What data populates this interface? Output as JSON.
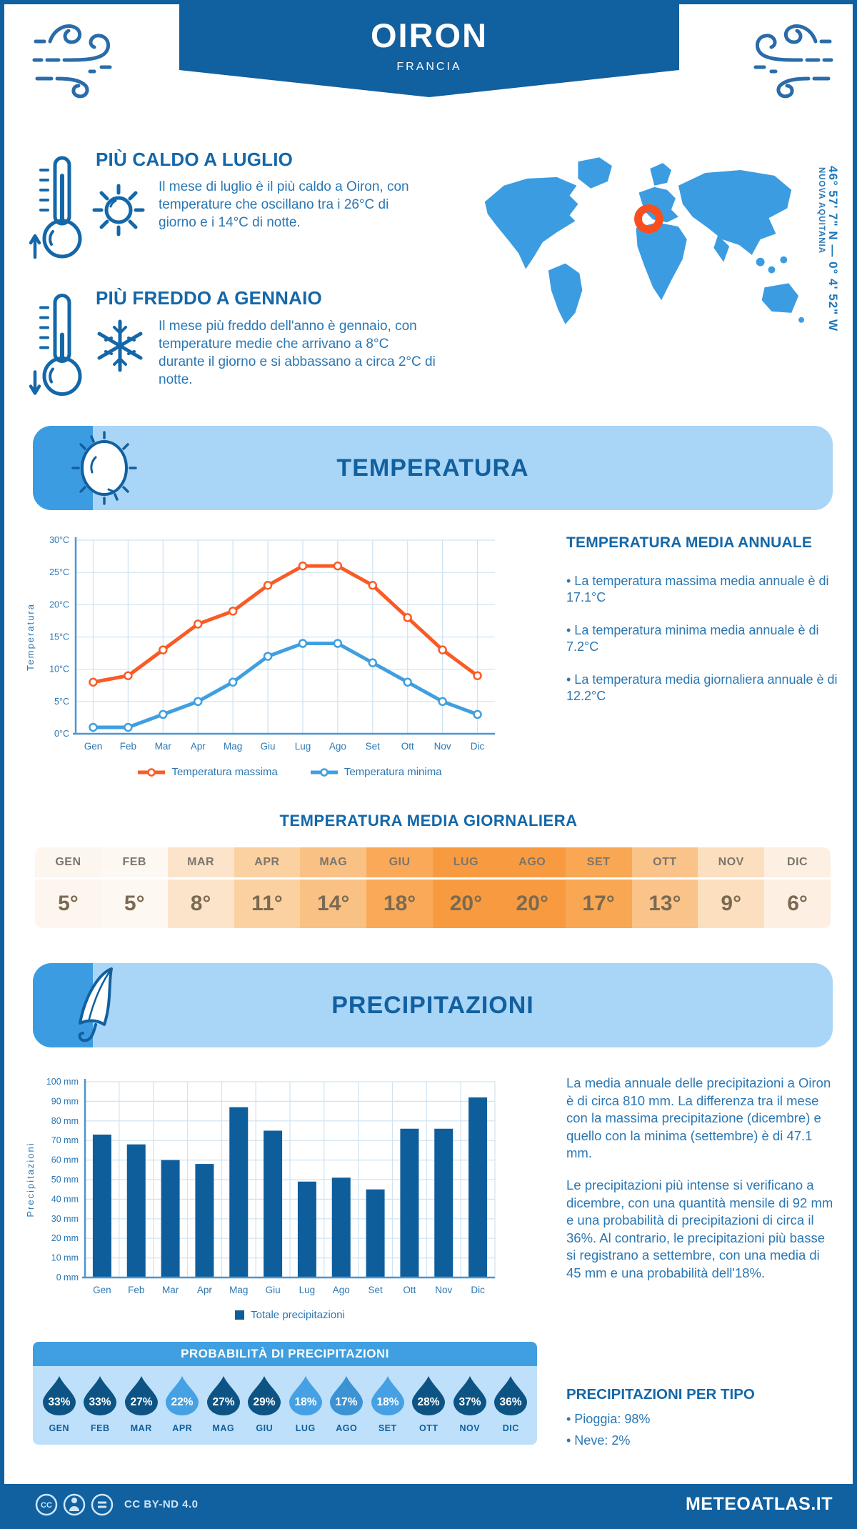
{
  "header": {
    "location": "OIRON",
    "country": "FRANCIA"
  },
  "map": {
    "coordinates": "46° 57' 7\" N — 0° 4' 52\" W",
    "region": "NUOVA AQUITANIA",
    "land_color": "#3c9ce1",
    "marker_color": "#f94f1e"
  },
  "highlights": {
    "hot": {
      "title": "PIÙ CALDO A LUGLIO",
      "text": "Il mese di luglio è il più caldo a Oiron, con temperature che oscillano tra i 26°C di giorno e i 14°C di notte."
    },
    "cold": {
      "title": "PIÙ FREDDO A GENNAIO",
      "text": "Il mese più freddo dell'anno è gennaio, con temperature medie che arrivano a 8°C durante il giorno e si abbassano a circa 2°C di notte."
    }
  },
  "temperature": {
    "banner_title": "TEMPERATURA",
    "annual_title": "TEMPERATURA MEDIA ANNUALE",
    "annual_bullets": [
      "• La temperatura massima media annuale è di 17.1°C",
      "• La temperatura minima media annuale è di 7.2°C",
      "• La temperatura media giornaliera annuale è di 12.2°C"
    ],
    "daily_title": "TEMPERATURA MEDIA GIORNALIERA",
    "daily_table": [
      {
        "month": "GEN",
        "value": "5°",
        "bg": "#fdf6ee"
      },
      {
        "month": "FEB",
        "value": "5°",
        "bg": "#fdf8f2"
      },
      {
        "month": "MAR",
        "value": "8°",
        "bg": "#fce4cb"
      },
      {
        "month": "APR",
        "value": "11°",
        "bg": "#fbd1a1"
      },
      {
        "month": "MAG",
        "value": "14°",
        "bg": "#fac184"
      },
      {
        "month": "GIU",
        "value": "18°",
        "bg": "#f9a958"
      },
      {
        "month": "LUG",
        "value": "20°",
        "bg": "#f89b40"
      },
      {
        "month": "AGO",
        "value": "20°",
        "bg": "#f89b40"
      },
      {
        "month": "SET",
        "value": "17°",
        "bg": "#f9a752"
      },
      {
        "month": "OTT",
        "value": "13°",
        "bg": "#fac389"
      },
      {
        "month": "NOV",
        "value": "9°",
        "bg": "#fcdfbf"
      },
      {
        "month": "DIC",
        "value": "6°",
        "bg": "#fdf0e2"
      }
    ]
  },
  "precipitation": {
    "banner_title": "PRECIPITAZIONI",
    "paragraph1": "La media annuale delle precipitazioni a Oiron è di circa 810 mm. La differenza tra il mese con la massima precipitazione (dicembre) e quello con la minima (settembre) è di 47.1 mm.",
    "paragraph2": "Le precipitazioni più intense si verificano a dicembre, con una quantità mensile di 92 mm e una probabilità di precipitazioni di circa il 36%. Al contrario, le precipitazioni più basse si registrano a settembre, con una media di 45 mm e una probabilità dell'18%.",
    "probability_title": "PROBABILITÀ DI PRECIPITAZIONI",
    "probability": [
      {
        "month": "GEN",
        "value": "33%",
        "color": "#0d5484"
      },
      {
        "month": "FEB",
        "value": "33%",
        "color": "#0d5484"
      },
      {
        "month": "MAR",
        "value": "27%",
        "color": "#0d5484"
      },
      {
        "month": "APR",
        "value": "22%",
        "color": "#45a1e3"
      },
      {
        "month": "MAG",
        "value": "27%",
        "color": "#0d5484"
      },
      {
        "month": "GIU",
        "value": "29%",
        "color": "#0d5484"
      },
      {
        "month": "LUG",
        "value": "18%",
        "color": "#45a1e3"
      },
      {
        "month": "AGO",
        "value": "17%",
        "color": "#3b93d4"
      },
      {
        "month": "SET",
        "value": "18%",
        "color": "#45a1e3"
      },
      {
        "month": "OTT",
        "value": "28%",
        "color": "#0d5484"
      },
      {
        "month": "NOV",
        "value": "37%",
        "color": "#0d5484"
      },
      {
        "month": "DIC",
        "value": "36%",
        "color": "#0d5484"
      }
    ],
    "per_type_title": "PRECIPITAZIONI PER TIPO",
    "per_type_bullets": [
      "• Pioggia: 98%",
      "• Neve: 2%"
    ]
  },
  "chart_data": [
    {
      "type": "line",
      "title": "Temperatura media giornaliera per mese",
      "categories": [
        "Gen",
        "Feb",
        "Mar",
        "Apr",
        "Mag",
        "Giu",
        "Lug",
        "Ago",
        "Set",
        "Ott",
        "Nov",
        "Dic"
      ],
      "series": [
        {
          "name": "Temperatura massima",
          "color": "#f95b26",
          "values": [
            8,
            9,
            13,
            17,
            19,
            23,
            26,
            26,
            23,
            18,
            13,
            9
          ]
        },
        {
          "name": "Temperatura minima",
          "color": "#3f9fe0",
          "values": [
            1,
            1,
            3,
            5,
            8,
            12,
            14,
            14,
            11,
            8,
            5,
            3
          ]
        }
      ],
      "xlabel": "",
      "ylabel": "Temperatura",
      "ylim": [
        0,
        30
      ],
      "ytick_step": 5,
      "ytick_suffix": "°C",
      "grid": true,
      "legend_position": "bottom"
    },
    {
      "type": "bar",
      "title": "Totale precipitazioni per mese",
      "categories": [
        "Gen",
        "Feb",
        "Mar",
        "Apr",
        "Mag",
        "Giu",
        "Lug",
        "Ago",
        "Set",
        "Ott",
        "Nov",
        "Dic"
      ],
      "series": [
        {
          "name": "Totale precipitazioni",
          "color": "#0f5e9c",
          "values": [
            73,
            68,
            60,
            58,
            87,
            75,
            49,
            51,
            45,
            76,
            76,
            92
          ]
        }
      ],
      "xlabel": "",
      "ylabel": "Precipitazioni",
      "ylim": [
        0,
        100
      ],
      "ytick_step": 10,
      "ytick_suffix": " mm",
      "grid": true,
      "legend_position": "bottom"
    }
  ],
  "footer": {
    "license": "CC BY-ND 4.0",
    "site": "METEOATLAS.IT"
  },
  "colors": {
    "primary": "#11609f",
    "accent": "#3c9ce1",
    "banner_bg": "#a9d5f7",
    "heading": "#1467a8",
    "text": "#2b77b3",
    "grid": "#cfe3f1",
    "prob_header": "#3f9fe0",
    "prob_bg": "#bfe0fa",
    "max_line": "#f95b26",
    "min_line": "#3f9fe0",
    "bar": "#0f5e9c"
  }
}
